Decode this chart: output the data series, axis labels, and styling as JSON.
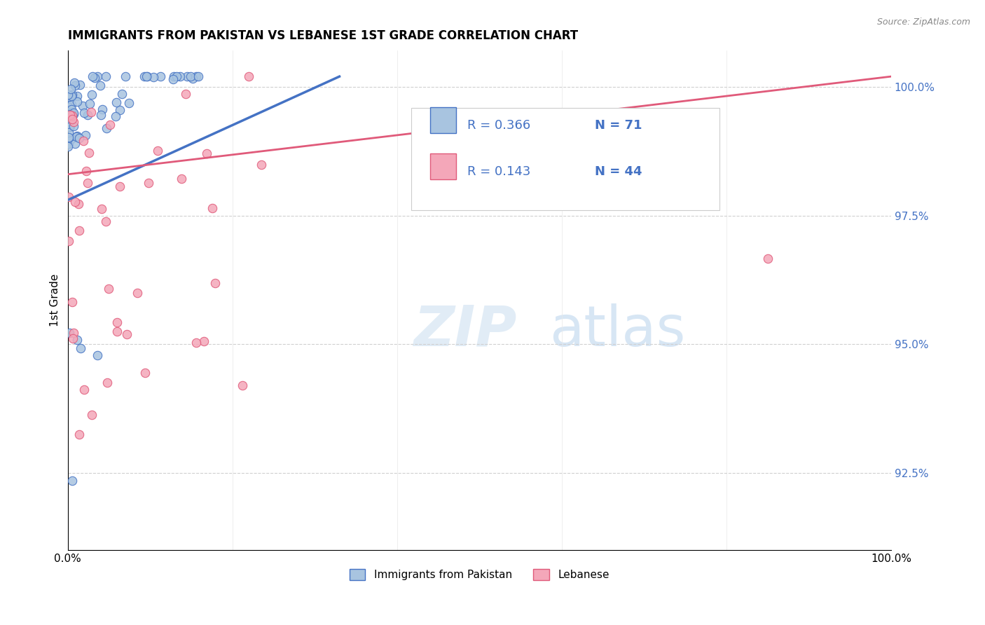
{
  "title": "IMMIGRANTS FROM PAKISTAN VS LEBANESE 1ST GRADE CORRELATION CHART",
  "source": "Source: ZipAtlas.com",
  "ylabel": "1st Grade",
  "legend_label1": "Immigrants from Pakistan",
  "legend_label2": "Lebanese",
  "R1": "0.366",
  "N1": "71",
  "R2": "0.143",
  "N2": "44",
  "color_blue": "#a8c4e0",
  "color_pink": "#f4a7b9",
  "line_blue": "#4472c4",
  "line_pink": "#e05a7a",
  "text_blue": "#4472c4",
  "background": "#ffffff",
  "watermark_zip": "ZIP",
  "watermark_atlas": "atlas",
  "pak_line_x": [
    0.0,
    0.33
  ],
  "pak_line_y": [
    97.8,
    100.2
  ],
  "leb_line_x": [
    0.0,
    1.0
  ],
  "leb_line_y": [
    98.3,
    100.2
  ],
  "ylim_min": 91.0,
  "ylim_max": 100.7,
  "xlim_min": 0.0,
  "xlim_max": 1.0
}
